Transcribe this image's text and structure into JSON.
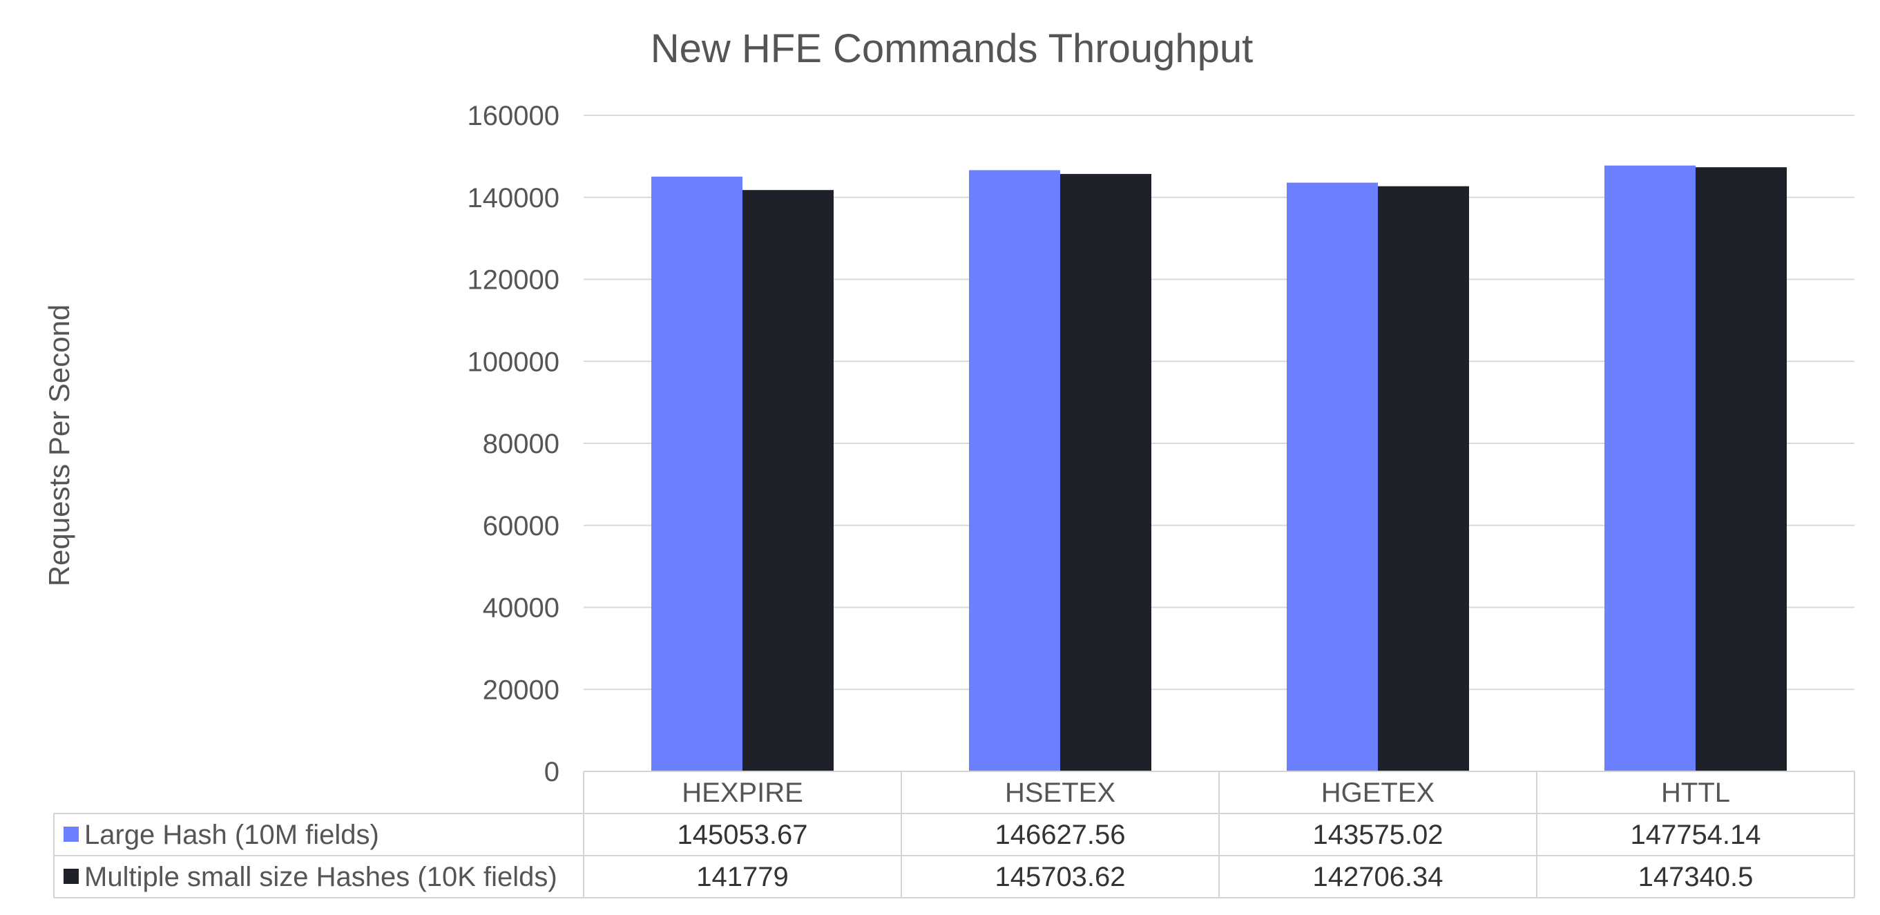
{
  "chart_data": {
    "type": "bar",
    "title": "New HFE Commands Throughput",
    "xlabel": "",
    "ylabel": "Requests Per Second",
    "categories": [
      "HEXPIRE",
      "HSETEX",
      "HGETEX",
      "HTTL"
    ],
    "series": [
      {
        "name": "Large Hash (10M fields)",
        "color": "#6B7FFF",
        "values": [
          145053.67,
          146627.56,
          143575.02,
          147754.14
        ],
        "labels": [
          "145053.67",
          "146627.56",
          "143575.02",
          "147754.14"
        ]
      },
      {
        "name": "Multiple small size Hashes (10K fields)",
        "color": "#1E2128",
        "values": [
          141779,
          145703.62,
          142706.34,
          147340.5
        ],
        "labels": [
          "141779",
          "145703.62",
          "142706.34",
          "147340.5"
        ]
      }
    ],
    "ylim": [
      0,
      160000
    ],
    "yticks": [
      0,
      20000,
      40000,
      60000,
      80000,
      100000,
      120000,
      140000,
      160000
    ],
    "grid": true,
    "legend": "data table below chart"
  }
}
